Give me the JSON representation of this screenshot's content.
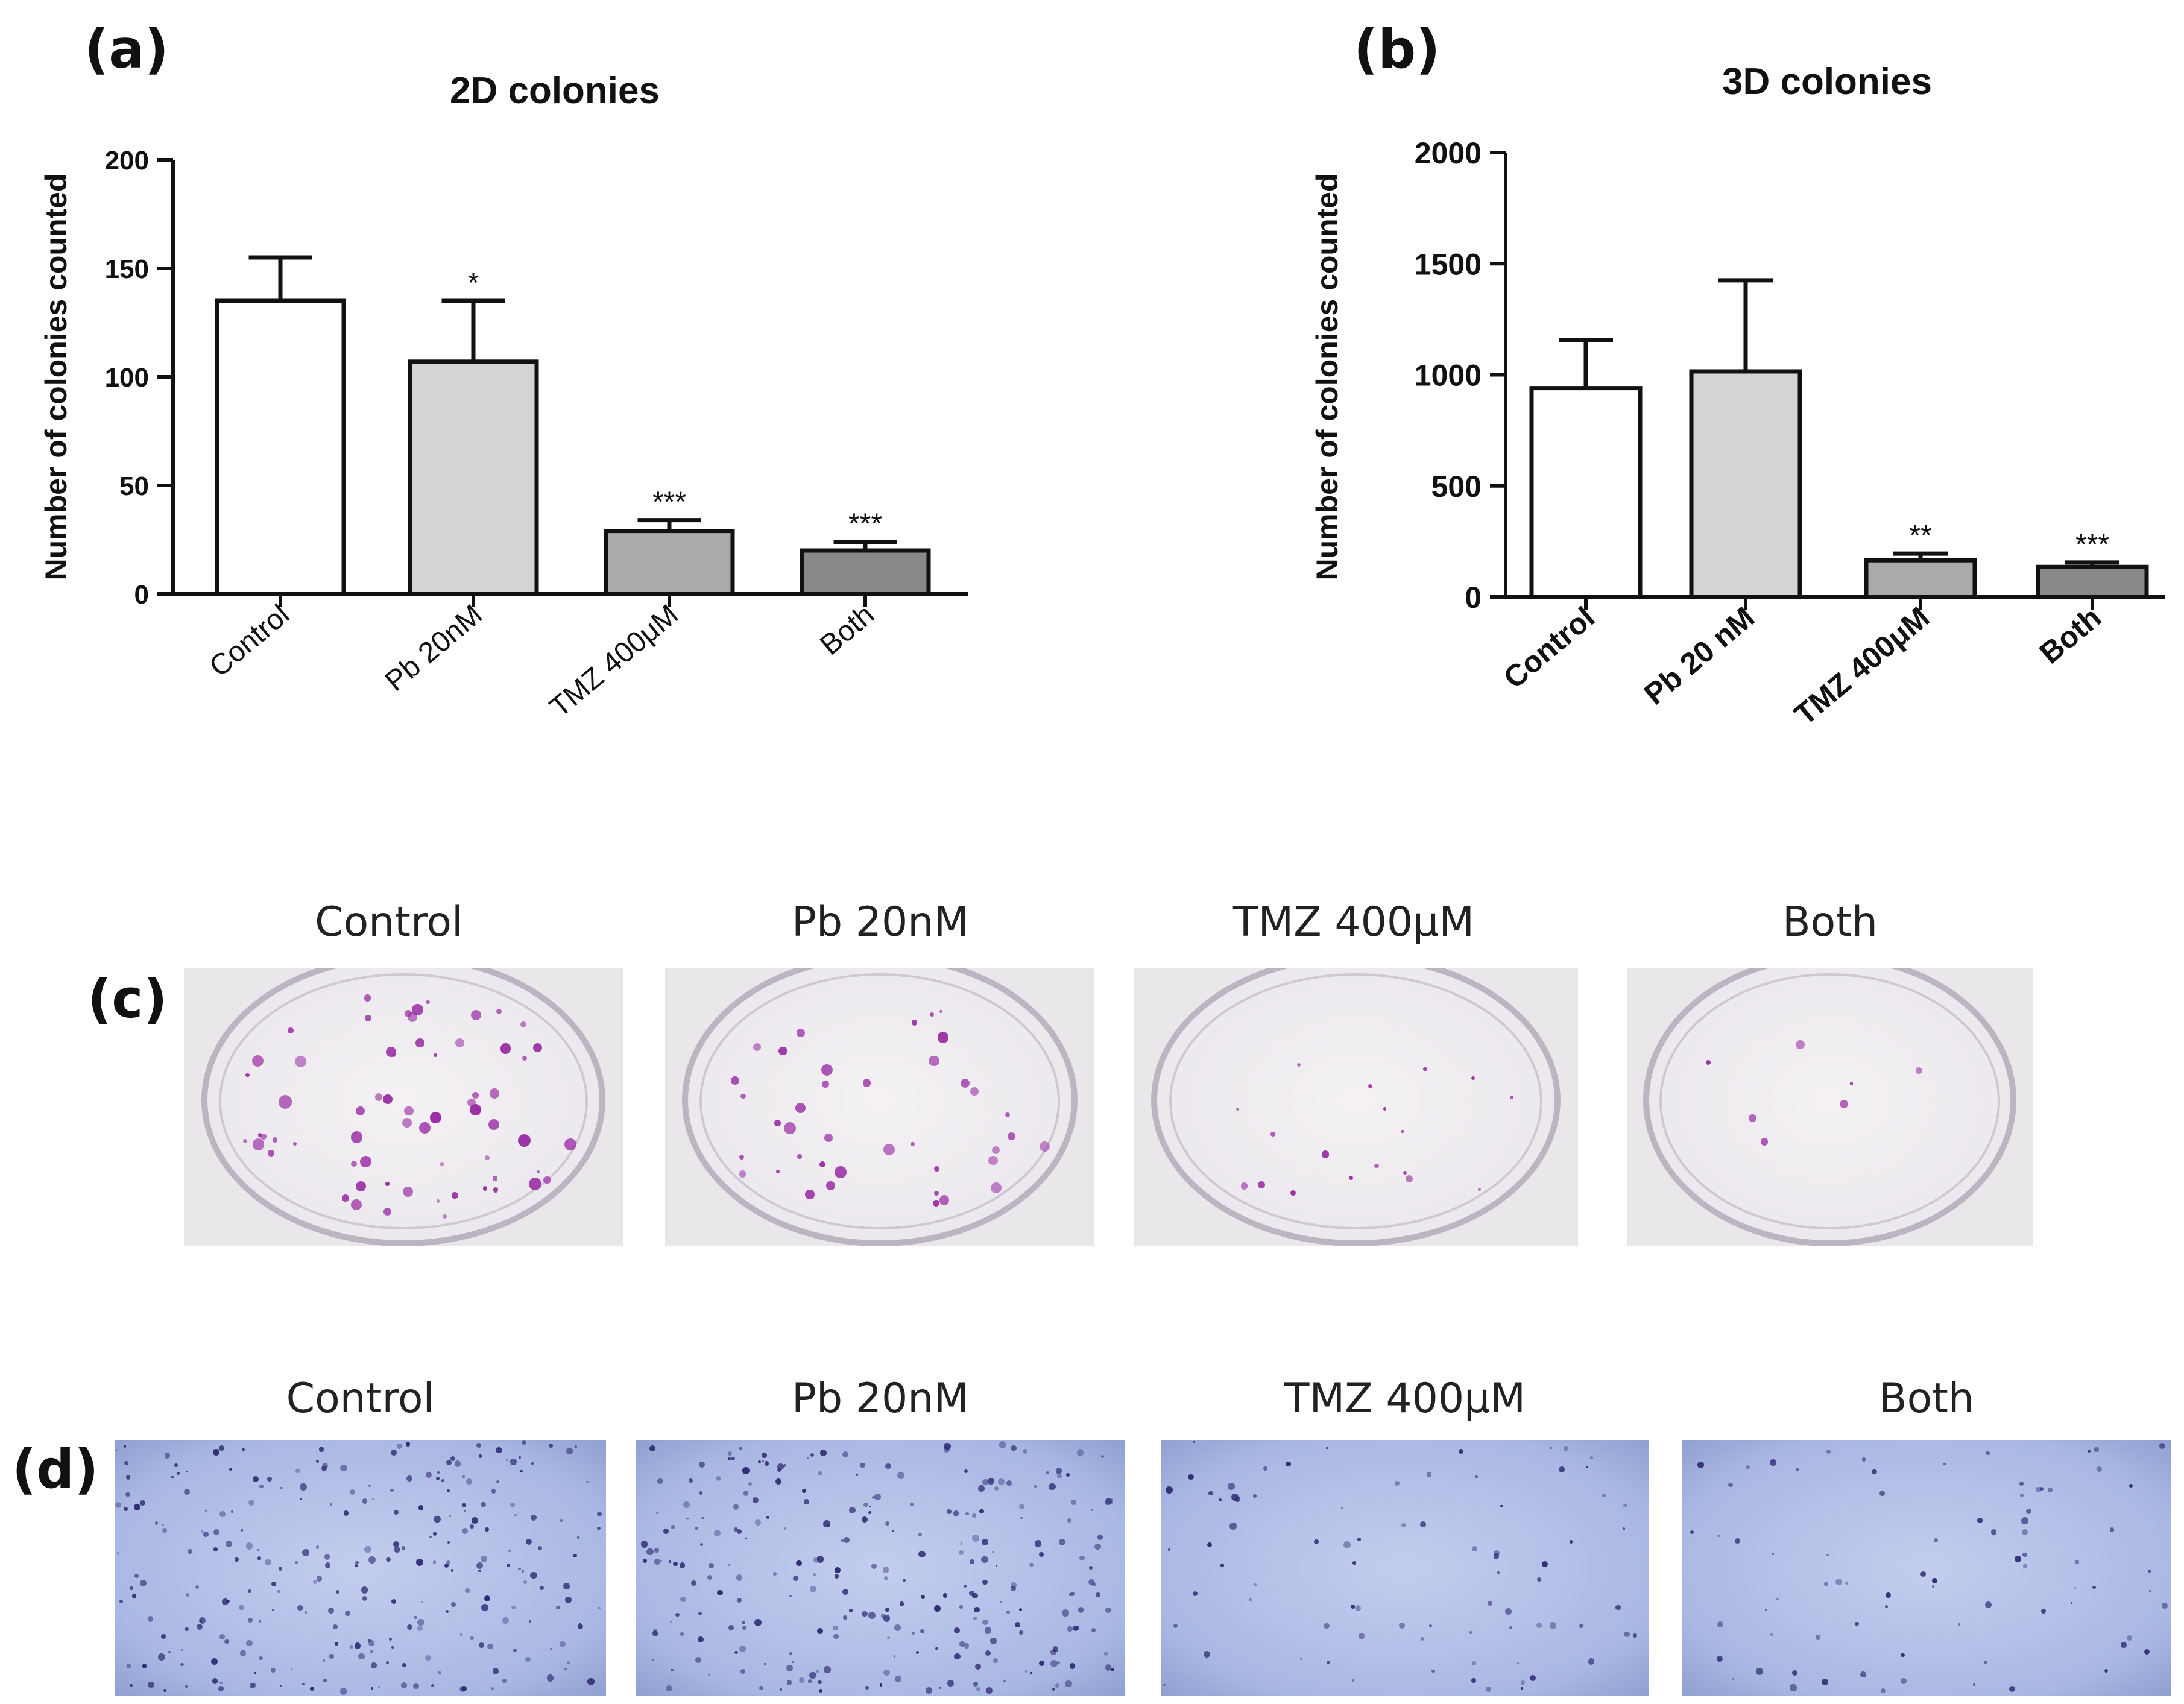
{
  "panels": {
    "a": "(a)",
    "b": "(b)",
    "c": "(c)",
    "d": "(d)"
  },
  "chart_data": [
    {
      "type": "bar",
      "title": "2D colonies",
      "ylabel": "Number of colonies counted",
      "xlabel": "",
      "categories": [
        "Control",
        "Pb 20nM",
        "TMZ 400μM",
        "Both"
      ],
      "values": [
        135,
        107,
        29,
        20
      ],
      "errors": [
        20,
        28,
        5,
        4
      ],
      "significance": [
        "",
        "*",
        "***",
        "***"
      ],
      "ylim": [
        0,
        200
      ],
      "yticks": [
        0,
        50,
        100,
        150,
        200
      ],
      "bar_colors": [
        "#ffffff",
        "#d4d4d4",
        "#aaaaaa",
        "#888888"
      ],
      "grid": false
    },
    {
      "type": "bar",
      "title": "3D colonies",
      "ylabel": "Number of colonies counted",
      "xlabel": "",
      "categories": [
        "Control",
        "Pb 20 nM",
        "TMZ 400μM",
        "Both"
      ],
      "values": [
        940,
        1015,
        165,
        135
      ],
      "errors": [
        215,
        410,
        30,
        20
      ],
      "significance": [
        "",
        "",
        "**",
        "***"
      ],
      "ylim": [
        0,
        2000
      ],
      "yticks": [
        0,
        500,
        1000,
        1500,
        2000
      ],
      "bar_colors": [
        "#ffffff",
        "#d4d4d4",
        "#aaaaaa",
        "#888888"
      ],
      "grid": false
    }
  ],
  "dish_row": {
    "labels": [
      "Control",
      "Pb 20nM",
      "TMZ 400μM",
      "Both"
    ],
    "colony_density": [
      0.9,
      0.55,
      0.25,
      0.1
    ]
  },
  "micro_row": {
    "labels": [
      "Control",
      "Pb 20nM",
      "TMZ 400μM",
      "Both"
    ],
    "colony_density": [
      1.0,
      1.0,
      0.3,
      0.3
    ]
  },
  "colors": {
    "axis": "#111111",
    "colony": "#9b2fa6",
    "micro_bg": "#a9b8e3",
    "micro_colony": "#2c2670"
  }
}
